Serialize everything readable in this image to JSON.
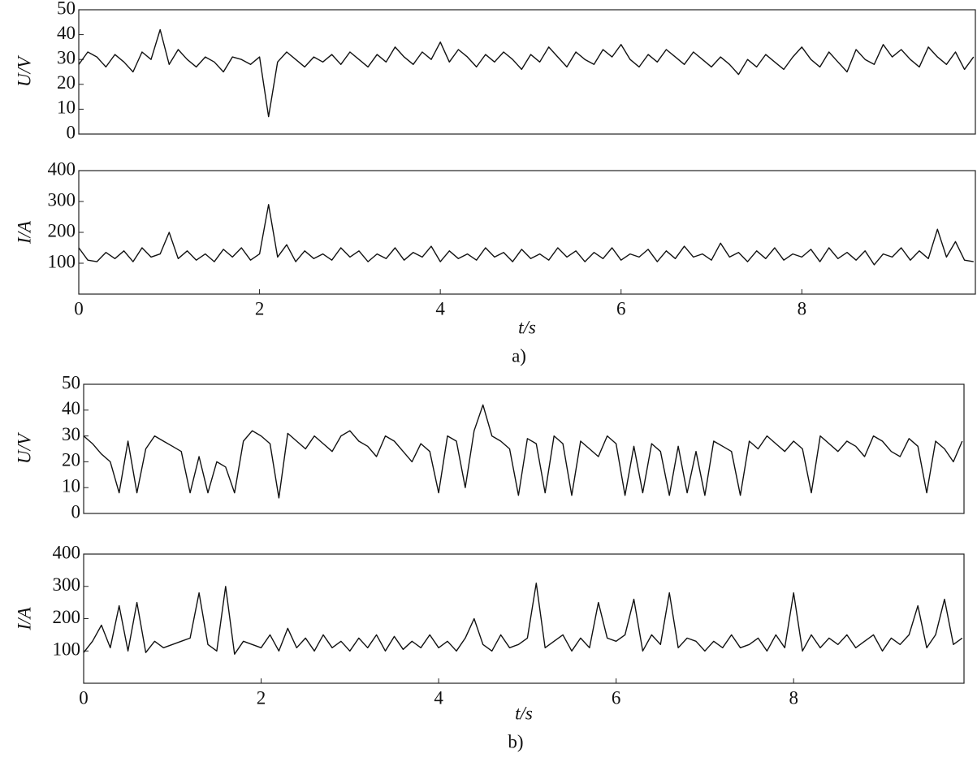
{
  "chart_data": [
    {
      "type": "line",
      "ylabel": "U/V",
      "color": "#111111",
      "xlim": [
        0,
        9.92
      ],
      "ylim": [
        0,
        50
      ],
      "yticks": [
        0,
        10,
        20,
        30,
        40,
        50
      ],
      "x": [
        0,
        0.1,
        0.2,
        0.3,
        0.4,
        0.5,
        0.6,
        0.7,
        0.8,
        0.9,
        1,
        1.1,
        1.2,
        1.3,
        1.4,
        1.5,
        1.6,
        1.7,
        1.8,
        1.9,
        2,
        2.1,
        2.2,
        2.3,
        2.4,
        2.5,
        2.6,
        2.7,
        2.8,
        2.9,
        3,
        3.1,
        3.2,
        3.3,
        3.4,
        3.5,
        3.6,
        3.7,
        3.8,
        3.9,
        4,
        4.1,
        4.2,
        4.3,
        4.4,
        4.5,
        4.6,
        4.7,
        4.8,
        4.9,
        5,
        5.1,
        5.2,
        5.3,
        5.4,
        5.5,
        5.6,
        5.7,
        5.8,
        5.9,
        6,
        6.1,
        6.2,
        6.3,
        6.4,
        6.5,
        6.6,
        6.7,
        6.8,
        6.9,
        7,
        7.1,
        7.2,
        7.3,
        7.4,
        7.5,
        7.6,
        7.7,
        7.8,
        7.9,
        8,
        8.1,
        8.2,
        8.3,
        8.4,
        8.5,
        8.6,
        8.7,
        8.8,
        8.9,
        9,
        9.1,
        9.2,
        9.3,
        9.4,
        9.5,
        9.6,
        9.7,
        9.8,
        9.9
      ],
      "values": [
        28,
        33,
        31,
        27,
        32,
        29,
        25,
        33,
        30,
        42,
        28,
        34,
        30,
        27,
        31,
        29,
        25,
        31,
        30,
        28,
        31,
        7,
        29,
        33,
        30,
        27,
        31,
        29,
        32,
        28,
        33,
        30,
        27,
        32,
        29,
        35,
        31,
        28,
        33,
        30,
        37,
        29,
        34,
        31,
        27,
        32,
        29,
        33,
        30,
        26,
        32,
        29,
        35,
        31,
        27,
        33,
        30,
        28,
        34,
        31,
        36,
        30,
        27,
        32,
        29,
        34,
        31,
        28,
        33,
        30,
        27,
        31,
        28,
        24,
        30,
        27,
        32,
        29,
        26,
        31,
        35,
        30,
        27,
        33,
        29,
        25,
        34,
        30,
        28,
        36,
        31,
        34,
        30,
        27,
        35,
        31,
        28,
        33,
        26,
        31
      ]
    },
    {
      "type": "line",
      "ylabel": "I/A",
      "xlabel": "t/s",
      "caption": "a)",
      "color": "#111111",
      "xlim": [
        0,
        9.92
      ],
      "ylim": [
        0,
        400
      ],
      "yticks": [
        100,
        200,
        300,
        400
      ],
      "xticks": [
        0,
        2,
        4,
        6,
        8
      ],
      "x": [
        0,
        0.1,
        0.2,
        0.3,
        0.4,
        0.5,
        0.6,
        0.7,
        0.8,
        0.9,
        1,
        1.1,
        1.2,
        1.3,
        1.4,
        1.5,
        1.6,
        1.7,
        1.8,
        1.9,
        2,
        2.1,
        2.2,
        2.3,
        2.4,
        2.5,
        2.6,
        2.7,
        2.8,
        2.9,
        3,
        3.1,
        3.2,
        3.3,
        3.4,
        3.5,
        3.6,
        3.7,
        3.8,
        3.9,
        4,
        4.1,
        4.2,
        4.3,
        4.4,
        4.5,
        4.6,
        4.7,
        4.8,
        4.9,
        5,
        5.1,
        5.2,
        5.3,
        5.4,
        5.5,
        5.6,
        5.7,
        5.8,
        5.9,
        6,
        6.1,
        6.2,
        6.3,
        6.4,
        6.5,
        6.6,
        6.7,
        6.8,
        6.9,
        7,
        7.1,
        7.2,
        7.3,
        7.4,
        7.5,
        7.6,
        7.7,
        7.8,
        7.9,
        8,
        8.1,
        8.2,
        8.3,
        8.4,
        8.5,
        8.6,
        8.7,
        8.8,
        8.9,
        9,
        9.1,
        9.2,
        9.3,
        9.4,
        9.5,
        9.6,
        9.7,
        9.8,
        9.9
      ],
      "values": [
        150,
        110,
        105,
        135,
        115,
        140,
        105,
        150,
        120,
        130,
        200,
        115,
        140,
        110,
        130,
        105,
        145,
        120,
        150,
        110,
        130,
        290,
        120,
        160,
        105,
        140,
        115,
        130,
        110,
        150,
        120,
        140,
        105,
        130,
        115,
        150,
        110,
        135,
        120,
        155,
        105,
        140,
        115,
        130,
        110,
        150,
        120,
        135,
        105,
        145,
        115,
        130,
        110,
        150,
        120,
        140,
        105,
        135,
        115,
        150,
        110,
        130,
        120,
        145,
        105,
        140,
        115,
        155,
        120,
        130,
        110,
        165,
        120,
        135,
        105,
        140,
        115,
        150,
        110,
        130,
        120,
        145,
        105,
        150,
        115,
        135,
        110,
        140,
        95,
        130,
        120,
        150,
        110,
        140,
        115,
        210,
        120,
        170,
        110,
        105
      ]
    },
    {
      "type": "line",
      "ylabel": "U/V",
      "color": "#111111",
      "xlim": [
        0,
        9.92
      ],
      "ylim": [
        0,
        50
      ],
      "yticks": [
        0,
        10,
        20,
        30,
        40,
        50
      ],
      "x": [
        0,
        0.1,
        0.2,
        0.3,
        0.4,
        0.5,
        0.6,
        0.7,
        0.8,
        0.9,
        1,
        1.1,
        1.2,
        1.3,
        1.4,
        1.5,
        1.6,
        1.7,
        1.8,
        1.9,
        2,
        2.1,
        2.2,
        2.3,
        2.4,
        2.5,
        2.6,
        2.7,
        2.8,
        2.9,
        3,
        3.1,
        3.2,
        3.3,
        3.4,
        3.5,
        3.6,
        3.7,
        3.8,
        3.9,
        4,
        4.1,
        4.2,
        4.3,
        4.4,
        4.5,
        4.6,
        4.7,
        4.8,
        4.9,
        5,
        5.1,
        5.2,
        5.3,
        5.4,
        5.5,
        5.6,
        5.7,
        5.8,
        5.9,
        6,
        6.1,
        6.2,
        6.3,
        6.4,
        6.5,
        6.6,
        6.7,
        6.8,
        6.9,
        7,
        7.1,
        7.2,
        7.3,
        7.4,
        7.5,
        7.6,
        7.7,
        7.8,
        7.9,
        8,
        8.1,
        8.2,
        8.3,
        8.4,
        8.5,
        8.6,
        8.7,
        8.8,
        8.9,
        9,
        9.1,
        9.2,
        9.3,
        9.4,
        9.5,
        9.6,
        9.7,
        9.8,
        9.9
      ],
      "values": [
        30,
        27,
        23,
        20,
        8,
        28,
        8,
        25,
        30,
        28,
        26,
        24,
        8,
        22,
        8,
        20,
        18,
        8,
        28,
        32,
        30,
        27,
        6,
        31,
        28,
        25,
        30,
        27,
        24,
        30,
        32,
        28,
        26,
        22,
        30,
        28,
        24,
        20,
        27,
        24,
        8,
        30,
        28,
        10,
        32,
        42,
        30,
        28,
        25,
        7,
        29,
        27,
        8,
        30,
        27,
        7,
        28,
        25,
        22,
        30,
        27,
        7,
        26,
        8,
        27,
        24,
        7,
        26,
        8,
        24,
        7,
        28,
        26,
        24,
        7,
        28,
        25,
        30,
        27,
        24,
        28,
        25,
        8,
        30,
        27,
        24,
        28,
        26,
        22,
        30,
        28,
        24,
        22,
        29,
        26,
        8,
        28,
        25,
        20,
        28
      ]
    },
    {
      "type": "line",
      "ylabel": "I/A",
      "xlabel": "t/s",
      "caption": "b)",
      "color": "#111111",
      "xlim": [
        0,
        9.92
      ],
      "ylim": [
        0,
        400
      ],
      "yticks": [
        100,
        200,
        300,
        400
      ],
      "xticks": [
        0,
        2,
        4,
        6,
        8
      ],
      "x": [
        0,
        0.1,
        0.2,
        0.3,
        0.4,
        0.5,
        0.6,
        0.7,
        0.8,
        0.9,
        1,
        1.1,
        1.2,
        1.3,
        1.4,
        1.5,
        1.6,
        1.7,
        1.8,
        1.9,
        2,
        2.1,
        2.2,
        2.3,
        2.4,
        2.5,
        2.6,
        2.7,
        2.8,
        2.9,
        3,
        3.1,
        3.2,
        3.3,
        3.4,
        3.5,
        3.6,
        3.7,
        3.8,
        3.9,
        4,
        4.1,
        4.2,
        4.3,
        4.4,
        4.5,
        4.6,
        4.7,
        4.8,
        4.9,
        5,
        5.1,
        5.2,
        5.3,
        5.4,
        5.5,
        5.6,
        5.7,
        5.8,
        5.9,
        6,
        6.1,
        6.2,
        6.3,
        6.4,
        6.5,
        6.6,
        6.7,
        6.8,
        6.9,
        7,
        7.1,
        7.2,
        7.3,
        7.4,
        7.5,
        7.6,
        7.7,
        7.8,
        7.9,
        8,
        8.1,
        8.2,
        8.3,
        8.4,
        8.5,
        8.6,
        8.7,
        8.8,
        8.9,
        9,
        9.1,
        9.2,
        9.3,
        9.4,
        9.5,
        9.6,
        9.7,
        9.8,
        9.9
      ],
      "values": [
        95,
        130,
        180,
        110,
        240,
        100,
        250,
        95,
        130,
        110,
        120,
        130,
        140,
        280,
        120,
        100,
        300,
        90,
        130,
        120,
        110,
        150,
        100,
        170,
        110,
        140,
        100,
        150,
        110,
        130,
        100,
        140,
        110,
        150,
        100,
        145,
        105,
        130,
        110,
        150,
        110,
        130,
        100,
        140,
        200,
        120,
        100,
        150,
        110,
        120,
        140,
        310,
        110,
        130,
        150,
        100,
        140,
        110,
        250,
        140,
        130,
        150,
        260,
        100,
        150,
        120,
        280,
        110,
        140,
        130,
        100,
        130,
        110,
        150,
        110,
        120,
        140,
        100,
        150,
        110,
        280,
        100,
        150,
        110,
        140,
        120,
        150,
        110,
        130,
        150,
        100,
        140,
        120,
        150,
        240,
        110,
        150,
        260,
        120,
        140
      ]
    }
  ]
}
